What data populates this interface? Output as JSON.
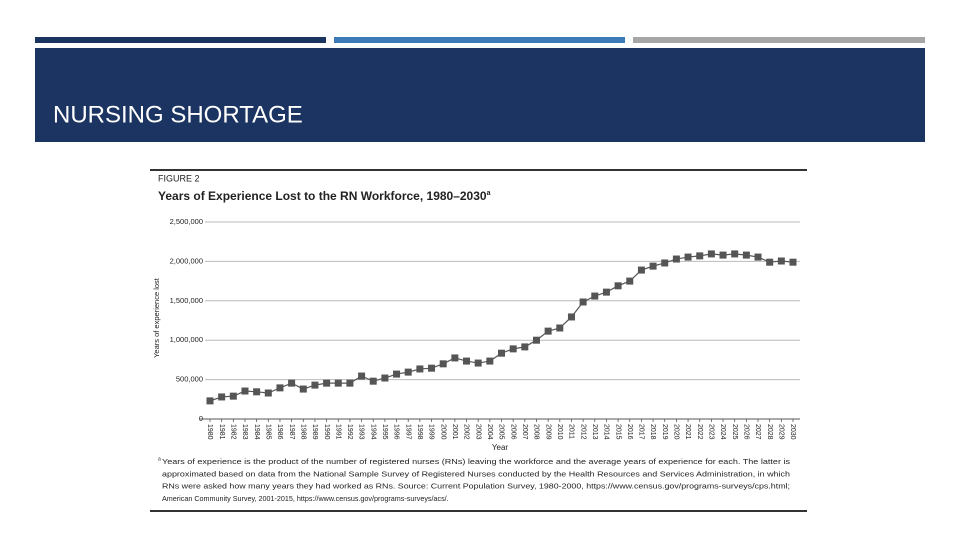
{
  "slide": {
    "title": "NURSING SHORTAGE"
  },
  "chart_data": {
    "type": "line",
    "figure_label": "FIGURE 2",
    "title": "Years of Experience Lost to the RN Workforce, 1980–2030",
    "title_marker": "a",
    "ylabel": "Years of experience lost",
    "xlabel": "Year",
    "categories": [
      "1980",
      "1981",
      "1982",
      "1983",
      "1984",
      "1985",
      "1986",
      "1987",
      "1988",
      "1989",
      "1990",
      "1991",
      "1992",
      "1993",
      "1994",
      "1995",
      "1996",
      "1997",
      "1998",
      "1999",
      "2000",
      "2001",
      "2002",
      "2003",
      "2004",
      "2005",
      "2006",
      "2007",
      "2008",
      "2009",
      "2010",
      "2011",
      "2012",
      "2013",
      "2014",
      "2015",
      "2016",
      "2017",
      "2018",
      "2019",
      "2020",
      "2021",
      "2022",
      "2023",
      "2024",
      "2025",
      "2026",
      "2027",
      "2028",
      "2029",
      "2030"
    ],
    "values": [
      230000,
      280000,
      290000,
      355000,
      345000,
      330000,
      395000,
      455000,
      380000,
      430000,
      455000,
      455000,
      455000,
      545000,
      480000,
      520000,
      570000,
      595000,
      635000,
      645000,
      700000,
      775000,
      735000,
      710000,
      735000,
      835000,
      890000,
      915000,
      1000000,
      1115000,
      1155000,
      1295000,
      1485000,
      1560000,
      1610000,
      1690000,
      1750000,
      1890000,
      1940000,
      1980000,
      2030000,
      2055000,
      2070000,
      2095000,
      2080000,
      2095000,
      2080000,
      2055000,
      1990000,
      2005000,
      1990000
    ],
    "color": "#555555",
    "ylim": [
      0,
      2500000
    ],
    "yticks": [
      0,
      {
        "value": 500000,
        "label": "500,000"
      },
      {
        "value": 1000000,
        "label": "1,000,000"
      },
      {
        "value": 1500000,
        "label": "1,500,000"
      },
      {
        "value": 2000000,
        "label": "2,000,000"
      },
      {
        "value": 2500000,
        "label": "2,500,000"
      }
    ],
    "grid": true,
    "footnote_marker": "a",
    "footnote": [
      "Years of experience is the product of the number of registered nurses (RNs) leaving the workforce and the average years of experience for each. The latter is",
      "approximated based on data from the National Sample Survey of Registered Nurses conducted by the Health Resources and Services Administration, in which",
      "RNs were asked how many years they had worked as RNs. Source: Current Population Survey, 1980-2000, https://www.census.gov/programs-surveys/cps.html;",
      "American Community Survey, 2001-2015, https://www.census.gov/programs-surveys/acs/."
    ]
  }
}
